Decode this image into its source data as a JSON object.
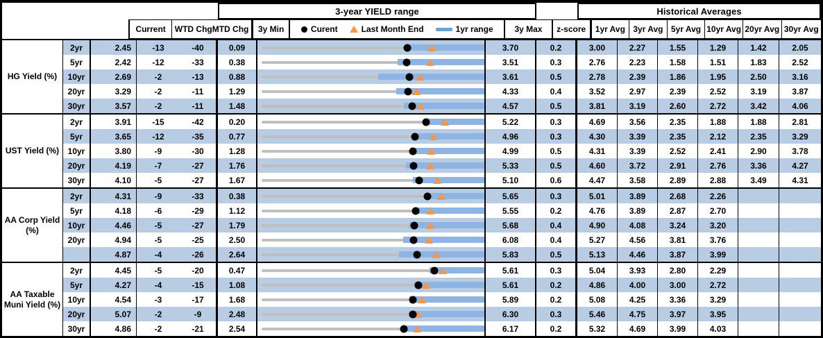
{
  "header": {
    "range_title": "3-year YIELD range",
    "hist_title": "Historical Averages",
    "col_current": "Current",
    "col_wtd": "WTD Chg",
    "col_mtd": "MTD Chg",
    "col_3y_min": "3y Min",
    "col_3y_max": "3y Max",
    "col_zscore": "z-score",
    "avg_cols": [
      "1yr Avg",
      "3yr Avg",
      "5yr Avg",
      "10yr Avg",
      "20yr Avg",
      "30yr Avg"
    ],
    "legend": {
      "current": "Curent",
      "last_month_end": "Last Month End",
      "range_1yr": "1yr range"
    }
  },
  "colors": {
    "stripe": "#b8cce4",
    "bar_1yr": "#8db4e3",
    "gray_3y_line": "#bfbfbf",
    "orange_triangle": "#f79646",
    "black_dot": "#000000",
    "legend_bar": "#6f9fd8"
  },
  "chart_data": {
    "type": "table",
    "embedded_chart": {
      "type": "range-bullet-per-row",
      "title": "3-year YIELD range",
      "legend": [
        "Curent (black dot)",
        "Last Month End (orange triangle)",
        "1yr range (blue bar)"
      ],
      "x_extent_note": "each row spans its own [3y Min, 3y Max]; 1yr range bar ends at 3y Max"
    },
    "columns": [
      "Current",
      "WTD Chg",
      "MTD Chg",
      "3y Min",
      "3y Max",
      "z-score",
      "1yr Avg",
      "3yr Avg",
      "5yr Avg",
      "10yr Avg",
      "20yr Avg",
      "30yr Avg"
    ],
    "groups": [
      {
        "label": "HG Yield (%)",
        "rows": [
          {
            "tenor": "2yr",
            "current": "2.45",
            "wtd": "-13",
            "mtd": "-40",
            "min3y": "0.09",
            "max3y": "3.70",
            "z": "0.2",
            "last_month_end": 2.85,
            "range_1yr_lo": 2.43,
            "avgs": [
              "3.00",
              "2.27",
              "1.55",
              "1.29",
              "1.42",
              "2.05"
            ]
          },
          {
            "tenor": "5yr",
            "current": "2.42",
            "wtd": "-12",
            "mtd": "-33",
            "min3y": "0.38",
            "max3y": "3.51",
            "z": "0.3",
            "last_month_end": 2.75,
            "range_1yr_lo": 2.29,
            "avgs": [
              "2.76",
              "2.23",
              "1.58",
              "1.51",
              "1.83",
              "2.52"
            ]
          },
          {
            "tenor": "10yr",
            "current": "2.69",
            "wtd": "-2",
            "mtd": "-13",
            "min3y": "0.88",
            "max3y": "3.61",
            "z": "0.5",
            "last_month_end": 2.82,
            "range_1yr_lo": 2.31,
            "avgs": [
              "2.78",
              "2.39",
              "1.86",
              "1.95",
              "2.50",
              "3.16"
            ]
          },
          {
            "tenor": "20yr",
            "current": "3.29",
            "wtd": "-2",
            "mtd": "-11",
            "min3y": "1.29",
            "max3y": "4.33",
            "z": "0.4",
            "last_month_end": 3.4,
            "range_1yr_lo": 3.13,
            "avgs": [
              "3.52",
              "2.97",
              "2.39",
              "2.52",
              "3.19",
              "3.87"
            ]
          },
          {
            "tenor": "30yr",
            "current": "3.57",
            "wtd": "-2",
            "mtd": "-11",
            "min3y": "1.48",
            "max3y": "4.57",
            "z": "0.5",
            "last_month_end": 3.68,
            "range_1yr_lo": 3.45,
            "avgs": [
              "3.81",
              "3.19",
              "2.60",
              "2.72",
              "3.42",
              "4.06"
            ]
          }
        ]
      },
      {
        "label": "UST Yield (%)",
        "rows": [
          {
            "tenor": "2yr",
            "current": "3.91",
            "wtd": "-15",
            "mtd": "-42",
            "min3y": "0.20",
            "max3y": "5.22",
            "z": "0.3",
            "last_month_end": 4.33,
            "range_1yr_lo": 3.9,
            "avgs": [
              "4.69",
              "3.56",
              "2.35",
              "1.88",
              "1.88",
              "2.81"
            ]
          },
          {
            "tenor": "5yr",
            "current": "3.65",
            "wtd": "-12",
            "mtd": "-35",
            "min3y": "0.77",
            "max3y": "4.96",
            "z": "0.3",
            "last_month_end": 4.0,
            "range_1yr_lo": 3.64,
            "avgs": [
              "4.30",
              "3.39",
              "2.35",
              "2.12",
              "2.35",
              "3.29"
            ]
          },
          {
            "tenor": "10yr",
            "current": "3.80",
            "wtd": "-9",
            "mtd": "-30",
            "min3y": "1.28",
            "max3y": "4.99",
            "z": "0.5",
            "last_month_end": 4.1,
            "range_1yr_lo": 3.79,
            "avgs": [
              "4.31",
              "3.39",
              "2.52",
              "2.41",
              "2.90",
              "3.78"
            ]
          },
          {
            "tenor": "20yr",
            "current": "4.19",
            "wtd": "-7",
            "mtd": "-27",
            "min3y": "1.76",
            "max3y": "5.33",
            "z": "0.5",
            "last_month_end": 4.46,
            "range_1yr_lo": 4.07,
            "avgs": [
              "4.60",
              "3.72",
              "2.91",
              "2.76",
              "3.36",
              "4.27"
            ]
          },
          {
            "tenor": "30yr",
            "current": "4.10",
            "wtd": "-5",
            "mtd": "-27",
            "min3y": "1.67",
            "max3y": "5.10",
            "z": "0.6",
            "last_month_end": 4.37,
            "range_1yr_lo": 4.0,
            "avgs": [
              "4.47",
              "3.58",
              "2.89",
              "2.88",
              "3.49",
              "4.31"
            ]
          }
        ]
      },
      {
        "label": "AA Corp Yield (%)",
        "rows": [
          {
            "tenor": "2yr",
            "current": "4.31",
            "wtd": "-9",
            "mtd": "-33",
            "min3y": "0.38",
            "max3y": "5.65",
            "z": "0.3",
            "last_month_end": 4.64,
            "range_1yr_lo": 4.28,
            "avgs": [
              "5.01",
              "3.89",
              "2.68",
              "2.26",
              "",
              ""
            ]
          },
          {
            "tenor": "5yr",
            "current": "4.18",
            "wtd": "-6",
            "mtd": "-29",
            "min3y": "1.12",
            "max3y": "5.55",
            "z": "0.2",
            "last_month_end": 4.47,
            "range_1yr_lo": 4.15,
            "avgs": [
              "4.76",
              "3.89",
              "2.87",
              "2.70",
              "",
              ""
            ]
          },
          {
            "tenor": "10yr",
            "current": "4.46",
            "wtd": "-5",
            "mtd": "-27",
            "min3y": "1.79",
            "max3y": "5.68",
            "z": "0.4",
            "last_month_end": 4.73,
            "range_1yr_lo": 4.37,
            "avgs": [
              "4.90",
              "4.08",
              "3.24",
              "3.20",
              "",
              ""
            ]
          },
          {
            "tenor": "20yr",
            "current": "4.94",
            "wtd": "-5",
            "mtd": "-25",
            "min3y": "2.50",
            "max3y": "6.08",
            "z": "0.4",
            "last_month_end": 5.19,
            "range_1yr_lo": 4.77,
            "avgs": [
              "5.27",
              "4.56",
              "3.81",
              "3.76",
              "",
              ""
            ]
          },
          {
            "tenor": "",
            "current": "4.87",
            "wtd": "-4",
            "mtd": "-26",
            "min3y": "2.64",
            "max3y": "5.83",
            "z": "0.5",
            "last_month_end": 5.13,
            "range_1yr_lo": 4.61,
            "avgs": [
              "5.13",
              "4.46",
              "3.87",
              "3.99",
              "",
              ""
            ]
          }
        ]
      },
      {
        "label": "AA Taxable Muni Yield (%)",
        "rows": [
          {
            "tenor": "2yr",
            "current": "4.45",
            "wtd": "-5",
            "mtd": "-20",
            "min3y": "0.47",
            "max3y": "5.61",
            "z": "0.3",
            "last_month_end": 4.65,
            "range_1yr_lo": 4.34,
            "avgs": [
              "5.04",
              "3.93",
              "2.80",
              "2.29",
              "",
              ""
            ]
          },
          {
            "tenor": "5yr",
            "current": "4.27",
            "wtd": "-4",
            "mtd": "-15",
            "min3y": "1.08",
            "max3y": "5.61",
            "z": "0.2",
            "last_month_end": 4.42,
            "range_1yr_lo": 4.18,
            "avgs": [
              "4.86",
              "4.00",
              "3.00",
              "2.72",
              "",
              ""
            ]
          },
          {
            "tenor": "10yr",
            "current": "4.54",
            "wtd": "-3",
            "mtd": "-17",
            "min3y": "1.68",
            "max3y": "5.89",
            "z": "0.2",
            "last_month_end": 4.71,
            "range_1yr_lo": 4.47,
            "avgs": [
              "5.08",
              "4.25",
              "3.36",
              "3.29",
              "",
              ""
            ]
          },
          {
            "tenor": "20yr",
            "current": "5.07",
            "wtd": "-2",
            "mtd": "-9",
            "min3y": "2.48",
            "max3y": "6.30",
            "z": "0.3",
            "last_month_end": 5.16,
            "range_1yr_lo": 5.0,
            "avgs": [
              "5.46",
              "4.75",
              "3.97",
              "3.95",
              "",
              ""
            ]
          },
          {
            "tenor": "30yr",
            "current": "4.86",
            "wtd": "-2",
            "mtd": "-21",
            "min3y": "2.54",
            "max3y": "6.17",
            "z": "0.2",
            "last_month_end": 5.07,
            "range_1yr_lo": 4.84,
            "avgs": [
              "5.32",
              "4.69",
              "3.99",
              "4.03",
              "",
              ""
            ]
          }
        ]
      }
    ]
  }
}
